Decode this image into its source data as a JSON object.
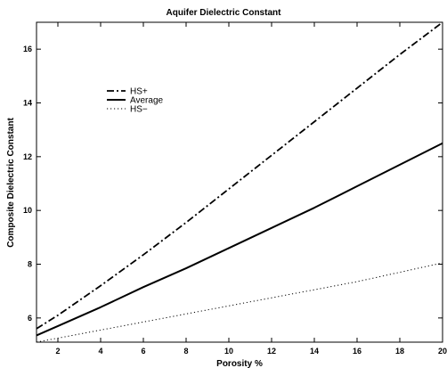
{
  "chart_data": {
    "type": "line",
    "title": "Aquifer Dielectric Constant",
    "xlabel": "Porosity %",
    "ylabel": "Composite Dielectric Constant",
    "xlim": [
      1,
      20
    ],
    "ylim": [
      5.1,
      17
    ],
    "x_ticks": [
      2,
      4,
      6,
      8,
      10,
      12,
      14,
      16,
      18,
      20
    ],
    "y_ticks": [
      6,
      8,
      10,
      12,
      14,
      16
    ],
    "grid": false,
    "legend_position": "upper-left",
    "series": [
      {
        "name": "HS+",
        "style": "dashdot",
        "color": "#000000",
        "x": [
          1,
          2,
          4,
          6,
          8,
          10,
          12,
          14,
          16,
          18,
          20
        ],
        "y": [
          5.6,
          6.1,
          7.2,
          8.35,
          9.55,
          10.8,
          12.05,
          13.3,
          14.55,
          15.8,
          17.0
        ]
      },
      {
        "name": "Average",
        "style": "solid",
        "color": "#000000",
        "x": [
          1,
          2,
          4,
          6,
          8,
          10,
          12,
          14,
          16,
          18,
          20
        ],
        "y": [
          5.35,
          5.7,
          6.4,
          7.15,
          7.85,
          8.6,
          9.35,
          10.1,
          10.9,
          11.7,
          12.5
        ]
      },
      {
        "name": "HS−",
        "style": "dotted",
        "color": "#000000",
        "x": [
          1,
          2,
          4,
          6,
          8,
          10,
          12,
          14,
          16,
          18,
          20
        ],
        "y": [
          5.1,
          5.25,
          5.55,
          5.85,
          6.15,
          6.45,
          6.75,
          7.05,
          7.35,
          7.7,
          8.05
        ]
      }
    ]
  }
}
